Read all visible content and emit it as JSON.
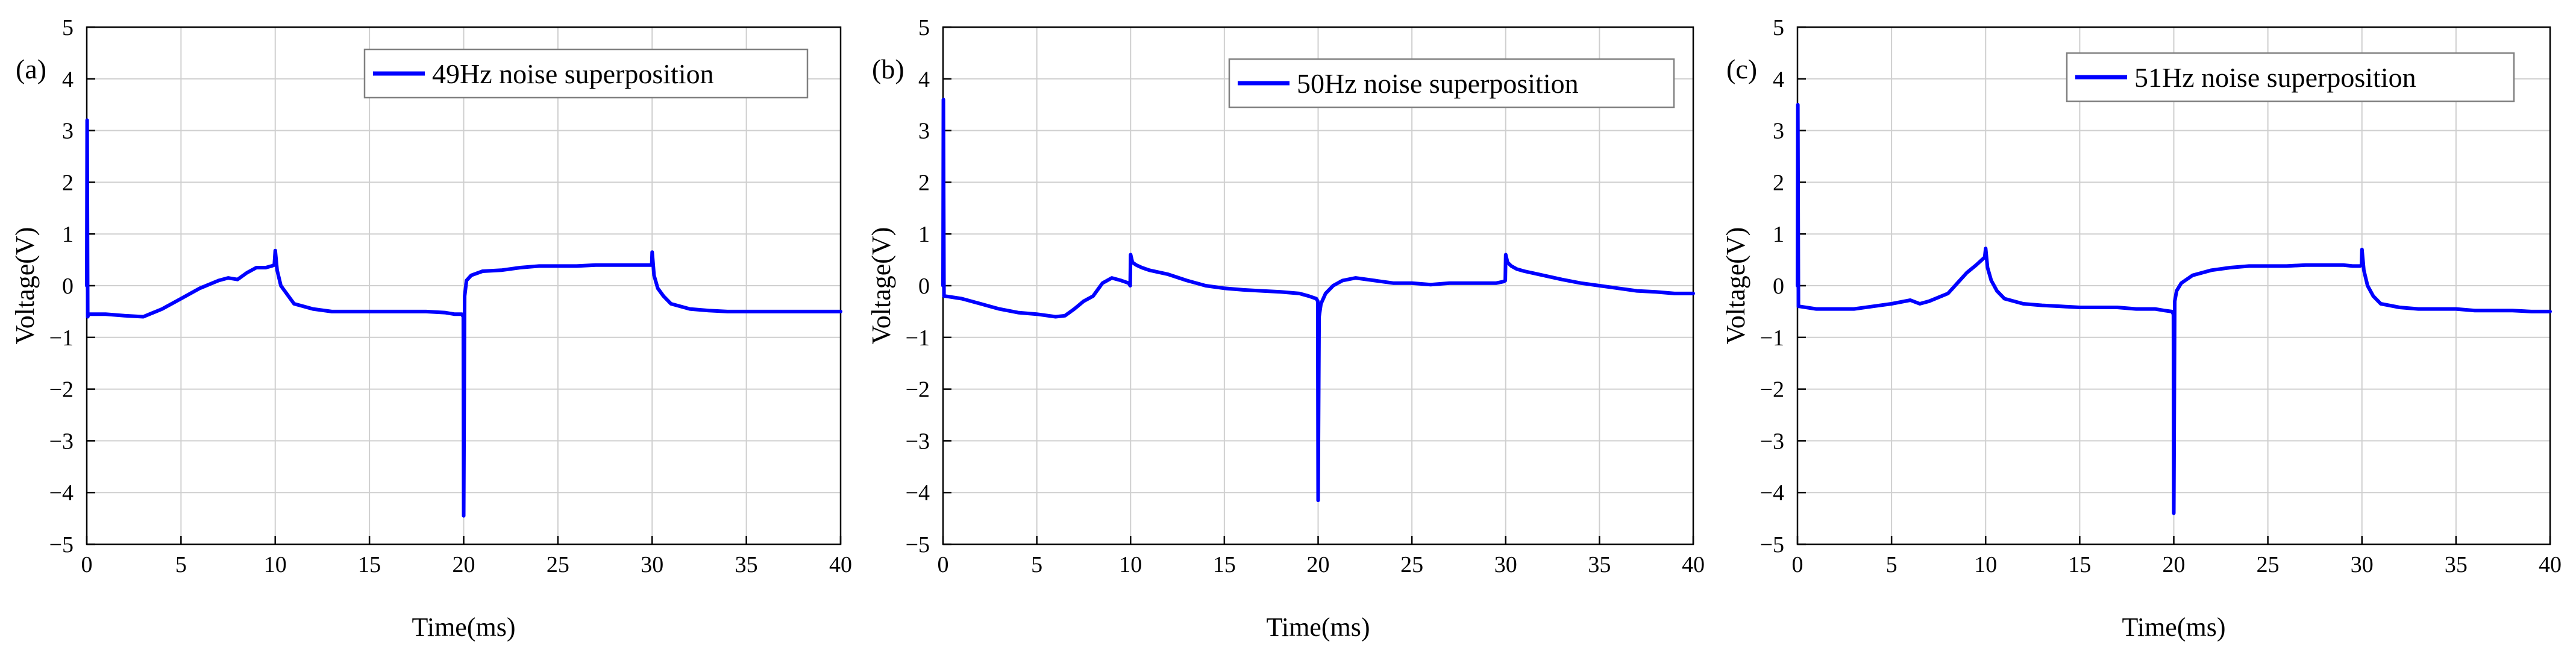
{
  "figure": {
    "panels": [
      "(a)",
      "(b)",
      "(c)"
    ]
  },
  "colors": {
    "line": "#0000ff",
    "grid": "#cfcfcf",
    "axis": "#000000"
  },
  "chart_data": [
    {
      "type": "line",
      "panel_label": "(a)",
      "xlabel": "Time(ms)",
      "ylabel": "Voltage(V)",
      "xlim": [
        0,
        40
      ],
      "ylim": [
        -5,
        5
      ],
      "xticks": [
        0,
        5,
        10,
        15,
        20,
        25,
        30,
        35,
        40
      ],
      "yticks": [
        -5,
        -4,
        -3,
        -2,
        -1,
        0,
        1,
        2,
        3,
        4,
        5
      ],
      "grid": true,
      "legend_position": "top-right",
      "series": [
        {
          "name": "49Hz noise superposition",
          "x": [
            0,
            0.02,
            0.05,
            0.1,
            1,
            2,
            3,
            4,
            5,
            6,
            7,
            7.5,
            8,
            8.5,
            9,
            9.5,
            9.8,
            9.95,
            10,
            10.1,
            10.3,
            10.6,
            11,
            12,
            13,
            14,
            15,
            16,
            17,
            18,
            19,
            19.5,
            19.9,
            19.98,
            20,
            20.05,
            20.15,
            20.4,
            21,
            22,
            23,
            24,
            25,
            26,
            27,
            28,
            29,
            29.5,
            29.9,
            29.98,
            30,
            30.1,
            30.3,
            30.6,
            31,
            32,
            33,
            34,
            35,
            36,
            37,
            38,
            39,
            40
          ],
          "y": [
            0,
            3.2,
            -0.6,
            -0.55,
            -0.55,
            -0.58,
            -0.6,
            -0.45,
            -0.25,
            -0.05,
            0.1,
            0.15,
            0.12,
            0.25,
            0.35,
            0.35,
            0.38,
            0.4,
            0.68,
            0.3,
            0.0,
            -0.15,
            -0.35,
            -0.45,
            -0.5,
            -0.5,
            -0.5,
            -0.5,
            -0.5,
            -0.5,
            -0.52,
            -0.55,
            -0.55,
            -0.6,
            -4.45,
            -0.2,
            0.1,
            0.2,
            0.28,
            0.3,
            0.35,
            0.38,
            0.38,
            0.38,
            0.4,
            0.4,
            0.4,
            0.4,
            0.4,
            0.4,
            0.65,
            0.2,
            -0.05,
            -0.2,
            -0.35,
            -0.45,
            -0.48,
            -0.5,
            -0.5,
            -0.5,
            -0.5,
            -0.5,
            -0.5,
            -0.5
          ]
        }
      ]
    },
    {
      "type": "line",
      "panel_label": "(b)",
      "xlabel": "Time(ms)",
      "ylabel": "Voltage(V)",
      "xlim": [
        0,
        40
      ],
      "ylim": [
        -5,
        5
      ],
      "xticks": [
        0,
        5,
        10,
        15,
        20,
        25,
        30,
        35,
        40
      ],
      "yticks": [
        -5,
        -4,
        -3,
        -2,
        -1,
        0,
        1,
        2,
        3,
        4,
        5
      ],
      "grid": true,
      "legend_position": "top-right",
      "series": [
        {
          "name": "50Hz noise superposition",
          "x": [
            0,
            0.02,
            0.05,
            0.1,
            1,
            2,
            3,
            4,
            5,
            6,
            6.5,
            7,
            7.5,
            8,
            8.5,
            9,
            9.5,
            9.9,
            9.98,
            10,
            10.1,
            10.3,
            10.6,
            11,
            12,
            13,
            14,
            15,
            16,
            17,
            18,
            19,
            19.5,
            19.9,
            19.98,
            20,
            20.05,
            20.15,
            20.4,
            20.8,
            21.3,
            22,
            23,
            24,
            25,
            26,
            27,
            28,
            29,
            29.5,
            29.9,
            29.98,
            30,
            30.1,
            30.3,
            30.6,
            31,
            32,
            33,
            34,
            35,
            36,
            37,
            38,
            39,
            40
          ],
          "y": [
            0,
            3.6,
            -0.2,
            -0.2,
            -0.25,
            -0.35,
            -0.45,
            -0.52,
            -0.55,
            -0.6,
            -0.58,
            -0.45,
            -0.3,
            -0.2,
            0.05,
            0.15,
            0.1,
            0.05,
            0.0,
            0.6,
            0.45,
            0.4,
            0.35,
            0.3,
            0.22,
            0.1,
            0.0,
            -0.05,
            -0.08,
            -0.1,
            -0.12,
            -0.15,
            -0.2,
            -0.25,
            -0.3,
            -4.15,
            -0.6,
            -0.35,
            -0.15,
            0.0,
            0.1,
            0.15,
            0.1,
            0.05,
            0.05,
            0.02,
            0.05,
            0.05,
            0.05,
            0.05,
            0.08,
            0.1,
            0.6,
            0.45,
            0.38,
            0.32,
            0.28,
            0.2,
            0.12,
            0.05,
            0.0,
            -0.05,
            -0.1,
            -0.12,
            -0.15,
            -0.15
          ]
        }
      ]
    },
    {
      "type": "line",
      "panel_label": "(c)",
      "xlabel": "Time(ms)",
      "ylabel": "Voltage(V)",
      "xlim": [
        0,
        40
      ],
      "ylim": [
        -5,
        5
      ],
      "xticks": [
        0,
        5,
        10,
        15,
        20,
        25,
        30,
        35,
        40
      ],
      "yticks": [
        -5,
        -4,
        -3,
        -2,
        -1,
        0,
        1,
        2,
        3,
        4,
        5
      ],
      "grid": true,
      "legend_position": "top-right",
      "series": [
        {
          "name": "51Hz noise superposition",
          "x": [
            0,
            0.02,
            0.05,
            0.1,
            1,
            2,
            3,
            4,
            5,
            6,
            6.5,
            7,
            8,
            8.5,
            9,
            9.5,
            9.8,
            9.95,
            10,
            10.1,
            10.3,
            10.6,
            11,
            12,
            13,
            14,
            15,
            16,
            17,
            18,
            19,
            19.5,
            19.9,
            19.98,
            20,
            20.05,
            20.15,
            20.4,
            21,
            22,
            23,
            24,
            25,
            26,
            27,
            28,
            29,
            29.5,
            29.9,
            29.98,
            30,
            30.1,
            30.3,
            30.6,
            31,
            32,
            33,
            34,
            35,
            36,
            37,
            38,
            39,
            40
          ],
          "y": [
            0,
            3.5,
            -0.4,
            -0.4,
            -0.45,
            -0.45,
            -0.45,
            -0.4,
            -0.35,
            -0.28,
            -0.35,
            -0.3,
            -0.15,
            0.05,
            0.25,
            0.4,
            0.5,
            0.55,
            0.72,
            0.35,
            0.1,
            -0.1,
            -0.25,
            -0.35,
            -0.38,
            -0.4,
            -0.42,
            -0.42,
            -0.42,
            -0.45,
            -0.45,
            -0.48,
            -0.5,
            -0.55,
            -4.4,
            -0.3,
            -0.1,
            0.05,
            0.2,
            0.3,
            0.35,
            0.38,
            0.38,
            0.38,
            0.4,
            0.4,
            0.4,
            0.38,
            0.38,
            0.4,
            0.7,
            0.3,
            0.0,
            -0.2,
            -0.35,
            -0.42,
            -0.45,
            -0.45,
            -0.45,
            -0.48,
            -0.48,
            -0.48,
            -0.5,
            -0.5
          ]
        }
      ]
    }
  ]
}
